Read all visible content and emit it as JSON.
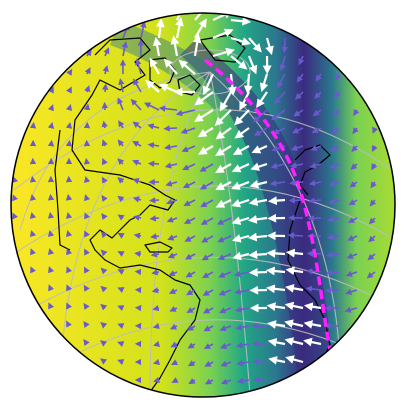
{
  "map": {
    "projection": "orthographic",
    "field_colormap": "viridis",
    "colors": {
      "field_low": "#3b2a80",
      "field_mid": "#21918c",
      "field_high": "#fde725",
      "background": "#ffffff",
      "coastline": "#000000",
      "gridline": "#bdbdbd",
      "arrow_low": "#6a5acd",
      "arrow_high": "#ffffff",
      "track": "#ff1fff"
    },
    "layers": [
      "scalar-field",
      "graticule",
      "coastlines",
      "wind-vectors",
      "great-circle-track",
      "globe-outline"
    ]
  }
}
